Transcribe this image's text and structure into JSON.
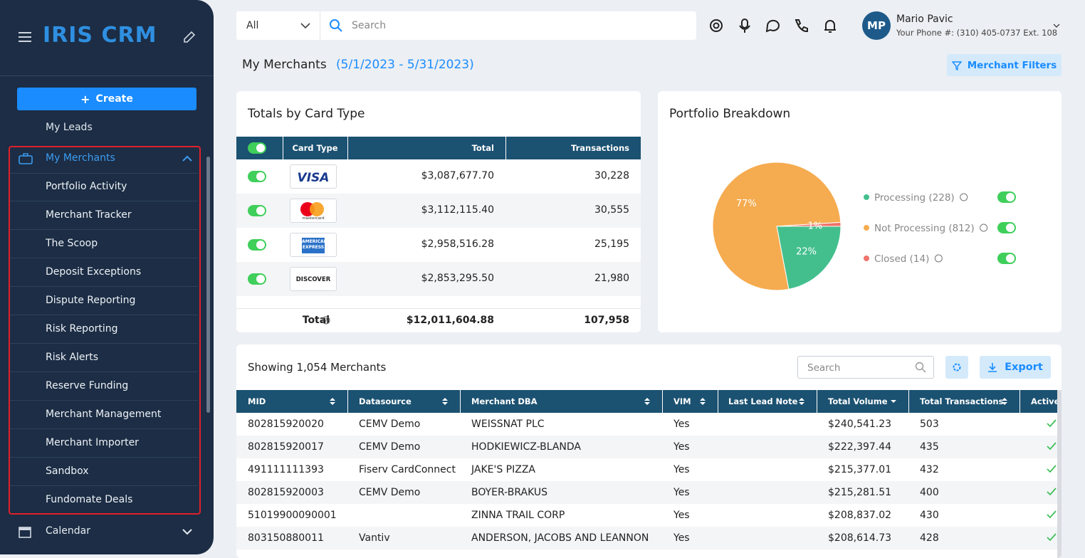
{
  "sidebar": {
    "logo": "IRIS CRM",
    "create": "Create",
    "partial_item": "My Leads",
    "section": "My Merchants",
    "items": [
      "Portfolio Activity",
      "Merchant Tracker",
      "The Scoop",
      "Deposit Exceptions",
      "Dispute Reporting",
      "Risk Reporting",
      "Risk Alerts",
      "Reserve Funding",
      "Merchant Management",
      "Merchant Importer",
      "Sandbox",
      "Fundomate Deals"
    ],
    "calendar": "Calendar"
  },
  "topbar": {
    "filter": "All",
    "search_placeholder": "Search",
    "user_initials": "MP",
    "user_name": "Mario Pavic",
    "user_phone": "Your Phone #: (310) 405-0737 Ext. 108"
  },
  "page": {
    "title": "My Merchants",
    "date_range": "(5/1/2023 - 5/31/2023)",
    "filters_button": "Merchant Filters"
  },
  "card_totals": {
    "title": "Totals by Card Type",
    "columns": [
      "Card Type",
      "Total",
      "Transactions"
    ],
    "rows": [
      {
        "card": "VISA",
        "total": "$3,087,677.70",
        "transactions": "30,228"
      },
      {
        "card": "mastercard",
        "total": "$3,112,115.40",
        "transactions": "30,555"
      },
      {
        "card": "AMERICAN EXPRESS",
        "total": "$2,958,516.28",
        "transactions": "25,195"
      },
      {
        "card": "DISCOVER",
        "total": "$2,853,295.50",
        "transactions": "21,980"
      }
    ],
    "footer": {
      "label": "Total",
      "total": "$12,011,604.88",
      "transactions": "107,958"
    }
  },
  "portfolio": {
    "title": "Portfolio Breakdown",
    "type": "pie",
    "slices": [
      {
        "label": "Processing (228)",
        "value": 22,
        "value_label": "22%",
        "color": "#43bf8e"
      },
      {
        "label": "Not Processing (812)",
        "value": 77,
        "value_label": "77%",
        "color": "#f5ab4f"
      },
      {
        "label": "Closed (14)",
        "value": 1,
        "value_label": "1%",
        "color": "#f0736b"
      }
    ]
  },
  "merchants": {
    "title": "Showing 1,054 Merchants",
    "search_placeholder": "Search",
    "export": "Export",
    "columns": [
      "MID",
      "Datasource",
      "Merchant DBA",
      "VIM",
      "Last Lead Note",
      "Total Volume",
      "Total Transactions",
      "Active"
    ],
    "rows": [
      [
        "802815920020",
        "CEMV Demo",
        "WEISSNAT PLC",
        "Yes",
        null,
        "$240,541.23",
        "503"
      ],
      [
        "802815920017",
        "CEMV Demo",
        "HODKIEWICZ-BLANDA",
        "Yes",
        null,
        "$222,397.44",
        "435"
      ],
      [
        "491111111393",
        "Fiserv CardConnect",
        "JAKE'S PIZZA",
        "Yes",
        null,
        "$215,377.01",
        "432"
      ],
      [
        "802815920003",
        "CEMV Demo",
        "BOYER-BRAKUS",
        "Yes",
        null,
        "$215,281.51",
        "400"
      ],
      [
        "51019900090001",
        null,
        "ZINNA TRAIL CORP",
        "Yes",
        null,
        "$208,837.02",
        "430"
      ],
      [
        "803150880011",
        "Vantiv",
        "ANDERSON, JACOBS AND LEANNON",
        "Yes",
        null,
        "$208,614.73",
        "428"
      ]
    ]
  }
}
